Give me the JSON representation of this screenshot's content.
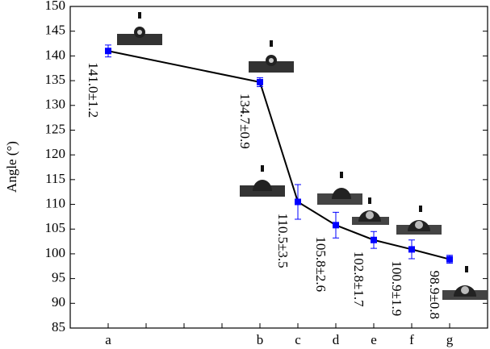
{
  "chart_data": {
    "type": "line",
    "y_label": "Angle (°)",
    "x": [
      1,
      5,
      6,
      7,
      8,
      9,
      10
    ],
    "values": [
      141.0,
      134.7,
      110.5,
      105.8,
      102.8,
      100.9,
      98.9
    ],
    "errors": [
      1.2,
      0.9,
      3.5,
      2.6,
      1.7,
      1.9,
      0.8
    ],
    "value_labels": [
      "141.0±1.2",
      "134.7±0.9",
      "110.5±3.5",
      "105.8±2.6",
      "102.8±1.7",
      "100.9±1.9",
      "98.9±0.8"
    ],
    "line_color": "#000000",
    "marker_color": "#0000ff",
    "xlim": [
      0,
      11
    ],
    "xticks": [
      {
        "value": 1,
        "label": "a"
      },
      {
        "value": 5,
        "label": "b"
      },
      {
        "value": 6,
        "label": "c"
      },
      {
        "value": 7,
        "label": "d"
      },
      {
        "value": 8,
        "label": "e"
      },
      {
        "value": 9,
        "label": "f"
      },
      {
        "value": 10,
        "label": "g"
      }
    ],
    "xminor_ticks": [
      2,
      3,
      4
    ],
    "ylim": [
      85,
      150
    ],
    "yticks": [
      85,
      90,
      95,
      100,
      105,
      110,
      115,
      120,
      125,
      130,
      135,
      140,
      145,
      150
    ]
  }
}
